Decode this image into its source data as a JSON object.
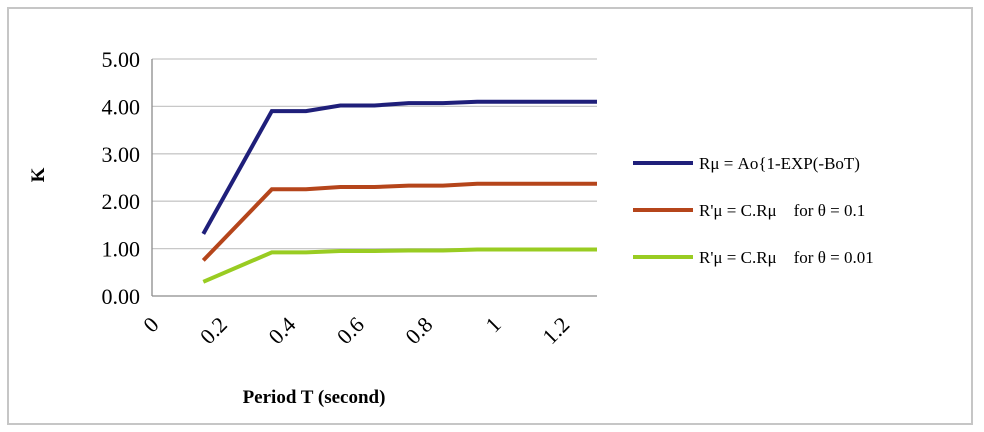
{
  "chart_data": {
    "type": "line",
    "title": "",
    "xlabel": "Period T (second)",
    "ylabel": "K",
    "x_tick_labels": [
      "0",
      "0.2",
      "0.4",
      "0.6",
      "0.8",
      "1",
      "1.2"
    ],
    "y_tick_labels": [
      "0.00",
      "1.00",
      "2.00",
      "3.00",
      "4.00",
      "5.00"
    ],
    "ylim": [
      0,
      5
    ],
    "xlim": [
      0,
      1.3
    ],
    "grid": "horizontal",
    "legend_position": "right",
    "x": [
      0.15,
      0.35,
      0.45,
      0.55,
      0.65,
      0.75,
      0.85,
      0.95,
      1.05,
      1.15,
      1.3
    ],
    "series": [
      {
        "name": "Rμ = Ao{1-EXP(-BoT)",
        "color": "#1f1f7a",
        "values": [
          1.31,
          3.9,
          3.9,
          4.02,
          4.02,
          4.07,
          4.07,
          4.1,
          4.1,
          4.1,
          4.1
        ]
      },
      {
        "name": "R'μ = C.Rμ    for θ = 0.1",
        "color": "#b5451b",
        "values": [
          0.75,
          2.25,
          2.25,
          2.3,
          2.3,
          2.33,
          2.33,
          2.37,
          2.37,
          2.37,
          2.37
        ]
      },
      {
        "name": "R'μ = C.Rμ    for θ = 0.01",
        "color": "#99cc22",
        "values": [
          0.3,
          0.92,
          0.92,
          0.95,
          0.95,
          0.96,
          0.96,
          0.98,
          0.98,
          0.98,
          0.98
        ]
      }
    ]
  }
}
